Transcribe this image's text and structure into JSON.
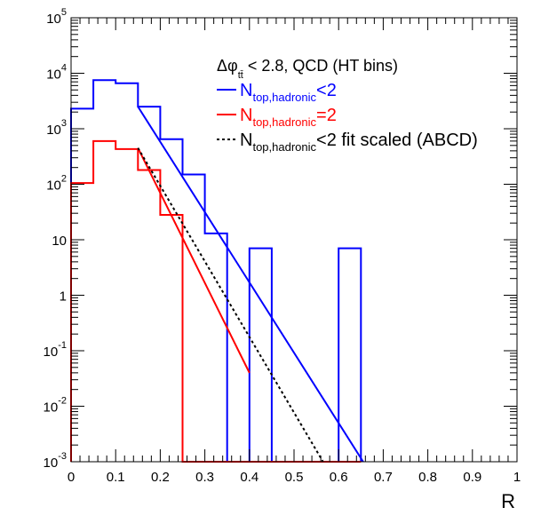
{
  "chart_data": {
    "type": "histogram-line",
    "title": "",
    "xlabel": "R",
    "ylabel": "",
    "xlim": [
      0,
      1
    ],
    "ylim": [
      0.001,
      100000
    ],
    "yscale": "log",
    "x_ticks": [
      "0",
      "0.1",
      "0.2",
      "0.3",
      "0.4",
      "0.5",
      "0.6",
      "0.7",
      "0.8",
      "0.9",
      "1"
    ],
    "y_ticks": [
      {
        "base": "10",
        "exp": "-3",
        "value": 0.001
      },
      {
        "base": "10",
        "exp": "-2",
        "value": 0.01
      },
      {
        "base": "10",
        "exp": "-1",
        "value": 0.1
      },
      {
        "base": "1",
        "exp": "",
        "value": 1
      },
      {
        "base": "10",
        "exp": "",
        "value": 10
      },
      {
        "base": "10",
        "exp": "2",
        "value": 100
      },
      {
        "base": "10",
        "exp": "3",
        "value": 1000
      },
      {
        "base": "10",
        "exp": "4",
        "value": 10000
      },
      {
        "base": "10",
        "exp": "5",
        "value": 100000
      }
    ],
    "bin_edges": [
      0,
      0.05,
      0.1,
      0.15,
      0.2,
      0.25,
      0.3,
      0.35,
      0.4,
      0.45,
      0.5,
      0.55,
      0.6,
      0.65
    ],
    "legend_header": {
      "pre": "Δφ",
      "sub": "tt̄",
      "post": " < 2.8, QCD (HT bins)"
    },
    "series": [
      {
        "name": "Ntop,hadronic<2",
        "label_main": "N",
        "label_sub": "top,hadronic",
        "label_post": "<2",
        "kind": "hist",
        "color": "#0000ff",
        "values": [
          2300,
          7500,
          6600,
          2500,
          650,
          150,
          13,
          0,
          7,
          0,
          0,
          0,
          7
        ]
      },
      {
        "name": "Ntop,hadronic=2",
        "label_main": "N",
        "label_sub": "top,hadronic",
        "label_post": "=2",
        "kind": "hist",
        "color": "#ff0000",
        "values": [
          105,
          600,
          430,
          180,
          28,
          0,
          0,
          0,
          0,
          0,
          0,
          0,
          0
        ]
      },
      {
        "name": "Ntop,hadronic<2 fit",
        "kind": "fit",
        "color": "#0000ff",
        "x": [
          0.15,
          0.655
        ],
        "y": [
          2500,
          0.001
        ]
      },
      {
        "name": "Ntop,hadronic=2 fit",
        "kind": "fit",
        "color": "#ff0000",
        "x": [
          0.15,
          0.4
        ],
        "y": [
          450,
          0.04
        ]
      },
      {
        "name": "Ntop,hadronic<2 fit scaled (ABCD)",
        "label_main": "N",
        "label_sub": "top,hadronic",
        "label_post": "<2 fit scaled (ABCD)",
        "kind": "fit-dotted",
        "color": "#000000",
        "x": [
          0.15,
          0.565
        ],
        "y": [
          450,
          0.001
        ]
      }
    ],
    "legend_position": "top-right",
    "grid": false
  }
}
